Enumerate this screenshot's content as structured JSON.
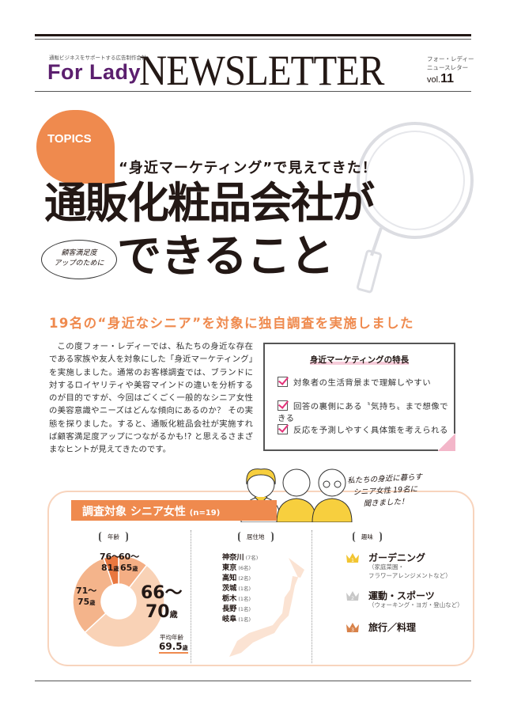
{
  "header": {
    "tagline": "通販ビジネスをサポートする広告制作会社",
    "brand": "For Lady",
    "masthead": "NEWSLETTER",
    "kana_line1": "フォー・レディー",
    "kana_line2": "ニュースレター",
    "vol_prefix": "vol.",
    "vol_number": "11"
  },
  "topics": {
    "badge": "TOPICS",
    "subtitle": "“身近マーケティング”で見えてきた！",
    "headline_1": "通販化粧品会社が",
    "headline_2": "できること",
    "bubble_line1": "顧客満足度",
    "bubble_line2": "アップのために"
  },
  "lead": "19名の“身近なシニア”を対象に独自調査を実施しました",
  "body": "この度フォー・レディーでは、私たちの身近な存在である家族や友人を対象にした「身近マーケティング」を実施しました。通常のお客様調査では、ブランドに対するロイヤリティや美容マインドの違いを分析するのが目的ですが、今回はごくごく一般的なシニア女性の美容意識やニーズはどんな傾向にあるのか？ その実態を探りました。すると、通販化粧品会社が実施すれば顧客満足度アップにつながるかも!? と思えるさまざまなヒントが見えてきたのです。",
  "features": {
    "title": "身近マーケティングの特長",
    "items": [
      "対象者の生活背景まで理解しやすい",
      "回答の裏側にある〝気持ち〟まで想像できる",
      "反応を予測しやすく具体策を考えられる"
    ]
  },
  "note": {
    "line1": "私たちの身近に暮らす",
    "line2": "シニア女性 19名に",
    "line3": "聞きました！"
  },
  "survey": {
    "title": "調査対象 シニア女性",
    "n": "(n=19)",
    "age": {
      "label": "年齢",
      "avg_label": "平均年齢",
      "avg_value": "69.5",
      "avg_unit": "歳"
    },
    "residence": {
      "label": "居住地",
      "items": [
        {
          "name": "神奈川",
          "count": "(7名)"
        },
        {
          "name": "東京",
          "count": "(6名)"
        },
        {
          "name": "高知",
          "count": "(2名)"
        },
        {
          "name": "茨城",
          "count": "(1名)"
        },
        {
          "name": "栃木",
          "count": "(1名)"
        },
        {
          "name": "長野",
          "count": "(1名)"
        },
        {
          "name": "岐阜",
          "count": "(1名)"
        }
      ]
    },
    "hobby": {
      "label": "趣味",
      "items": [
        {
          "rank": "1",
          "name": "ガーデニング",
          "sub1": "（家庭菜園・",
          "sub2": "フラワーアレンジメントなど）",
          "color": "#f2c531"
        },
        {
          "rank": "2",
          "name": "運動・スポーツ",
          "sub1": "（ウォーキング・ヨガ・登山など）",
          "sub2": "",
          "color": "#c8c8c8"
        },
        {
          "rank": "3",
          "name": "旅行／料理",
          "sub1": "",
          "sub2": "",
          "color": "#d8824a"
        }
      ]
    }
  },
  "chart_data": {
    "type": "pie",
    "donut": true,
    "categories": [
      "60〜65歳",
      "66〜70歳",
      "71〜75歳",
      "76〜81歳"
    ],
    "labels": [
      [
        "60〜",
        "65",
        "歳"
      ],
      [
        "66〜",
        "70",
        "歳"
      ],
      [
        "71〜",
        "75",
        "歳"
      ],
      [
        "76〜",
        "81",
        "歳"
      ]
    ],
    "values": [
      2,
      10,
      6,
      1
    ],
    "colors": [
      "#f4ae84",
      "#f9d2b6",
      "#f4b48b",
      "#e9773f"
    ]
  },
  "colors": {
    "accent": "#ef8a4e",
    "brand": "#5b1f6e",
    "check": "#e4337a"
  }
}
